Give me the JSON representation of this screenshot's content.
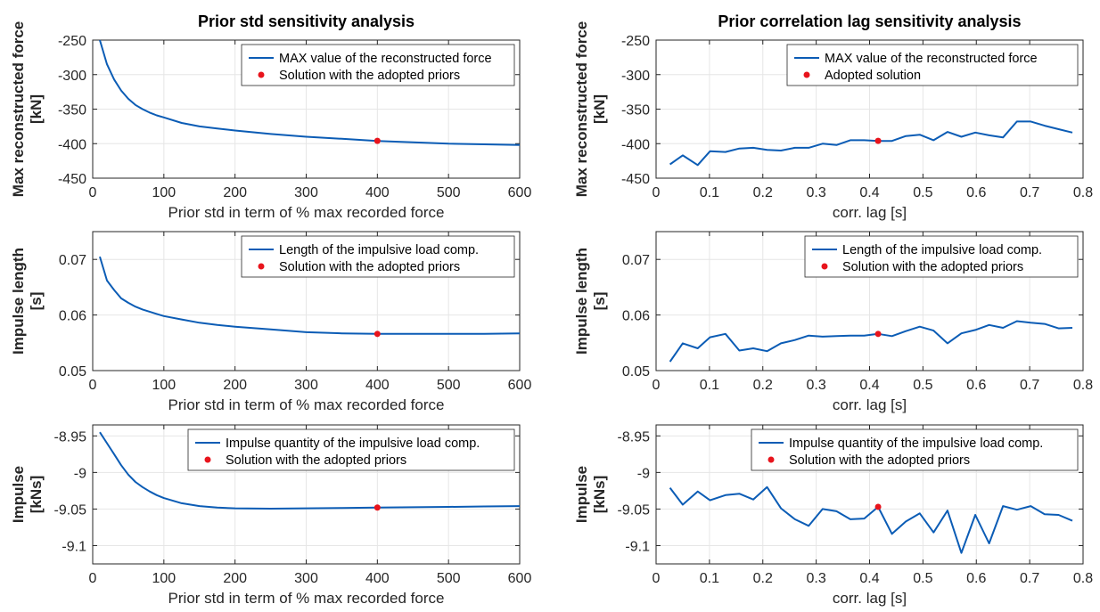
{
  "colors": {
    "line": "#0b5cb5",
    "marker": "#e8141c",
    "grid": "#e6e6e6",
    "axis": "#262626"
  },
  "chart_data": [
    {
      "id": "std-max",
      "type": "line",
      "title": "Prior std sensitivity analysis",
      "xlabel": "Prior std in term of % max recorded force",
      "ylabel": [
        "Max reconstructed force",
        "[kN]"
      ],
      "xlim": [
        0,
        600
      ],
      "ylim": [
        -450,
        -250
      ],
      "xticks": [
        0,
        100,
        200,
        300,
        400,
        500,
        600
      ],
      "yticks": [
        -250,
        -300,
        -350,
        -400,
        -450
      ],
      "xtick_labels": [
        "0",
        "100",
        "200",
        "300",
        "400",
        "500",
        "600"
      ],
      "ytick_labels": [
        "-250",
        "-300",
        "-350",
        "-400",
        "-450"
      ],
      "legend": {
        "position": "top-right",
        "series": "MAX value of the reconstructed force",
        "marker": "Solution with the adopted priors"
      },
      "series": {
        "x": [
          10,
          20,
          30,
          40,
          50,
          60,
          70,
          80,
          90,
          100,
          125,
          150,
          175,
          200,
          250,
          300,
          350,
          400,
          450,
          500,
          550,
          600
        ],
        "y": [
          -250,
          -285,
          -307,
          -323,
          -335,
          -344,
          -350,
          -355,
          -359,
          -362,
          -370,
          -375,
          -378,
          -381,
          -386,
          -390,
          -393,
          -396,
          -398,
          -400,
          -401,
          -402
        ]
      },
      "marker": {
        "x": 400,
        "y": -396
      }
    },
    {
      "id": "std-len",
      "type": "line",
      "title": "",
      "xlabel": "Prior std in term of % max recorded force",
      "ylabel": [
        "Impulse length",
        "[s]"
      ],
      "xlim": [
        0,
        600
      ],
      "ylim": [
        0.05,
        0.075
      ],
      "xticks": [
        0,
        100,
        200,
        300,
        400,
        500,
        600
      ],
      "yticks": [
        0.05,
        0.06,
        0.07
      ],
      "xtick_labels": [
        "0",
        "100",
        "200",
        "300",
        "400",
        "500",
        "600"
      ],
      "ytick_labels": [
        "0.05",
        "0.06",
        "0.07"
      ],
      "legend": {
        "position": "top-right",
        "series": "Length of the impulsive load comp.",
        "marker": "Solution with the adopted priors"
      },
      "series": {
        "x": [
          10,
          20,
          30,
          40,
          50,
          60,
          70,
          80,
          90,
          100,
          125,
          150,
          175,
          200,
          250,
          300,
          350,
          400,
          450,
          500,
          550,
          600
        ],
        "y": [
          0.0705,
          0.0662,
          0.0645,
          0.063,
          0.0622,
          0.0615,
          0.061,
          0.0606,
          0.0602,
          0.0598,
          0.0592,
          0.0586,
          0.0582,
          0.0579,
          0.0574,
          0.0569,
          0.0567,
          0.0566,
          0.0566,
          0.0566,
          0.0566,
          0.0567
        ]
      },
      "marker": {
        "x": 400,
        "y": 0.0566
      }
    },
    {
      "id": "std-imp",
      "type": "line",
      "title": "",
      "xlabel": "Prior std in term of % max recorded force",
      "ylabel": [
        "Impulse",
        "[kNs]"
      ],
      "xlim": [
        0,
        600
      ],
      "ylim": [
        -9.125,
        -8.935
      ],
      "xticks": [
        0,
        100,
        200,
        300,
        400,
        500,
        600
      ],
      "yticks": [
        -8.95,
        -9,
        -9.05,
        -9.1
      ],
      "xtick_labels": [
        "0",
        "100",
        "200",
        "300",
        "400",
        "500",
        "600"
      ],
      "ytick_labels": [
        "-8.95",
        "-9",
        "-9.05",
        "-9.1"
      ],
      "legend": {
        "position": "top-right",
        "series": "Impulse quantity of the impulsive load comp.",
        "marker": "Solution with the adopted priors"
      },
      "series": {
        "x": [
          10,
          20,
          30,
          40,
          50,
          60,
          70,
          80,
          90,
          100,
          125,
          150,
          175,
          200,
          250,
          300,
          350,
          400,
          450,
          500,
          550,
          600
        ],
        "y": [
          -8.945,
          -8.96,
          -8.975,
          -8.99,
          -9.003,
          -9.013,
          -9.02,
          -9.026,
          -9.031,
          -9.035,
          -9.042,
          -9.046,
          -9.048,
          -9.049,
          -9.0495,
          -9.049,
          -9.0485,
          -9.048,
          -9.0475,
          -9.047,
          -9.0465,
          -9.046
        ]
      },
      "marker": {
        "x": 400,
        "y": -9.048
      }
    },
    {
      "id": "lag-max",
      "type": "line",
      "title": "Prior correlation lag sensitivity analysis",
      "xlabel": "corr. lag [s]",
      "ylabel": [
        "Max reconstructed force",
        "[kN]"
      ],
      "xlim": [
        0,
        0.8
      ],
      "ylim": [
        -450,
        -250
      ],
      "xticks": [
        0,
        0.1,
        0.2,
        0.3,
        0.4,
        0.5,
        0.6,
        0.7,
        0.8
      ],
      "yticks": [
        -250,
        -300,
        -350,
        -400,
        -450
      ],
      "xtick_labels": [
        "0",
        "0.1",
        "0.2",
        "0.3",
        "0.4",
        "0.5",
        "0.6",
        "0.7",
        "0.8"
      ],
      "ytick_labels": [
        "-250",
        "-300",
        "-350",
        "-400",
        "-450"
      ],
      "legend": {
        "position": "top-right",
        "series": "MAX value of the reconstructed force",
        "marker": "Adopted solution"
      },
      "series": {
        "x": [
          0.026,
          0.05,
          0.078,
          0.101,
          0.13,
          0.156,
          0.182,
          0.208,
          0.234,
          0.26,
          0.286,
          0.312,
          0.338,
          0.364,
          0.39,
          0.416,
          0.442,
          0.468,
          0.494,
          0.52,
          0.546,
          0.572,
          0.598,
          0.624,
          0.65,
          0.676,
          0.702,
          0.728,
          0.754,
          0.78
        ],
        "y": [
          -430,
          -417,
          -431,
          -411,
          -412,
          -407,
          -406,
          -409,
          -410,
          -406,
          -406,
          -400,
          -402,
          -395,
          -395,
          -396,
          -396,
          -389,
          -387,
          -395,
          -383,
          -390,
          -384,
          -388,
          -391,
          -368,
          -368,
          -374,
          -379,
          -384
        ]
      },
      "marker": {
        "x": 0.416,
        "y": -396
      }
    },
    {
      "id": "lag-len",
      "type": "line",
      "title": "",
      "xlabel": "corr. lag [s]",
      "ylabel": [
        "Impulse length",
        "[s]"
      ],
      "xlim": [
        0,
        0.8
      ],
      "ylim": [
        0.05,
        0.075
      ],
      "xticks": [
        0,
        0.1,
        0.2,
        0.3,
        0.4,
        0.5,
        0.6,
        0.7,
        0.8
      ],
      "yticks": [
        0.05,
        0.06,
        0.07
      ],
      "xtick_labels": [
        "0",
        "0.1",
        "0.2",
        "0.3",
        "0.4",
        "0.5",
        "0.6",
        "0.7",
        "0.8"
      ],
      "ytick_labels": [
        "0.05",
        "0.06",
        "0.07"
      ],
      "legend": {
        "position": "top-right",
        "series": "Length of the impulsive load comp.",
        "marker": "Solution with the adopted priors"
      },
      "series": {
        "x": [
          0.026,
          0.05,
          0.078,
          0.101,
          0.13,
          0.156,
          0.182,
          0.208,
          0.234,
          0.26,
          0.286,
          0.312,
          0.338,
          0.364,
          0.39,
          0.416,
          0.442,
          0.468,
          0.494,
          0.52,
          0.546,
          0.572,
          0.598,
          0.624,
          0.65,
          0.676,
          0.702,
          0.728,
          0.754,
          0.78
        ],
        "y": [
          0.0516,
          0.0549,
          0.054,
          0.056,
          0.0566,
          0.0536,
          0.054,
          0.0535,
          0.0549,
          0.0555,
          0.0563,
          0.0561,
          0.0562,
          0.0563,
          0.0563,
          0.0566,
          0.0562,
          0.0571,
          0.0579,
          0.0572,
          0.0549,
          0.0567,
          0.0573,
          0.0582,
          0.0577,
          0.0589,
          0.0586,
          0.0584,
          0.0576,
          0.0577
        ]
      },
      "marker": {
        "x": 0.416,
        "y": 0.0566
      }
    },
    {
      "id": "lag-imp",
      "type": "line",
      "title": "",
      "xlabel": "corr. lag [s]",
      "ylabel": [
        "Impulse",
        "[kNs]"
      ],
      "xlim": [
        0,
        0.8
      ],
      "ylim": [
        -9.125,
        -8.935
      ],
      "xticks": [
        0,
        0.1,
        0.2,
        0.3,
        0.4,
        0.5,
        0.6,
        0.7,
        0.8
      ],
      "yticks": [
        -8.95,
        -9,
        -9.05,
        -9.1
      ],
      "xtick_labels": [
        "0",
        "0.1",
        "0.2",
        "0.3",
        "0.4",
        "0.5",
        "0.6",
        "0.7",
        "0.8"
      ],
      "ytick_labels": [
        "-8.95",
        "-9",
        "-9.05",
        "-9.1"
      ],
      "legend": {
        "position": "top-right",
        "series": "Impulse quantity of the impulsive load comp.",
        "marker": "Solution with the adopted priors"
      },
      "series": {
        "x": [
          0.026,
          0.05,
          0.078,
          0.101,
          0.13,
          0.156,
          0.182,
          0.208,
          0.234,
          0.26,
          0.286,
          0.312,
          0.338,
          0.364,
          0.39,
          0.416,
          0.442,
          0.468,
          0.494,
          0.52,
          0.546,
          0.572,
          0.598,
          0.624,
          0.65,
          0.676,
          0.702,
          0.728,
          0.754,
          0.78
        ],
        "y": [
          -9.021,
          -9.044,
          -9.026,
          -9.038,
          -9.031,
          -9.029,
          -9.037,
          -9.02,
          -9.049,
          -9.064,
          -9.073,
          -9.05,
          -9.053,
          -9.064,
          -9.063,
          -9.047,
          -9.084,
          -9.067,
          -9.056,
          -9.082,
          -9.052,
          -9.11,
          -9.058,
          -9.097,
          -9.046,
          -9.051,
          -9.046,
          -9.057,
          -9.058,
          -9.066
        ]
      },
      "marker": {
        "x": 0.416,
        "y": -9.047
      }
    }
  ]
}
